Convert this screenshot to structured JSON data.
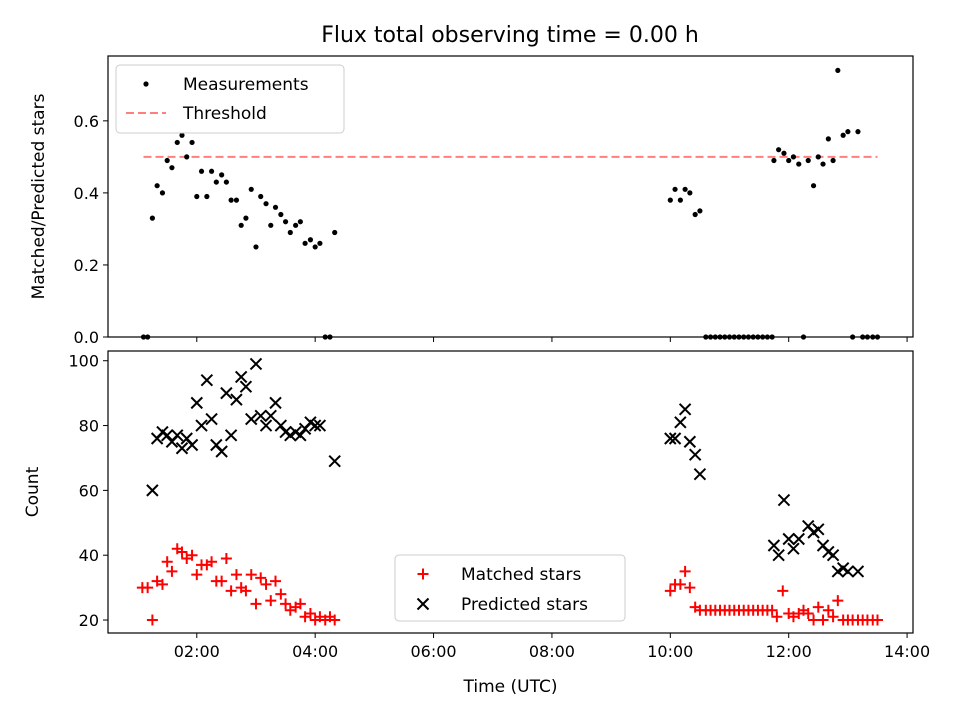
{
  "title": "Flux total observing time = 0.00 h",
  "chart_data": [
    {
      "type": "scatter",
      "ylabel": "Matched/Predicted stars",
      "xlim": [
        0.5,
        14.1
      ],
      "ylim": [
        0,
        0.78
      ],
      "yticks": [
        0.0,
        0.2,
        0.4,
        0.6
      ],
      "ytick_labels": [
        "0.0",
        "0.2",
        "0.4",
        "0.6"
      ],
      "legend_position": "upper left",
      "threshold": {
        "name": "Threshold",
        "y": 0.5,
        "x_range": [
          1.1,
          13.5
        ],
        "color": "#ff7f7f",
        "style": "dashed"
      },
      "series": [
        {
          "name": "Measurements",
          "marker": "dot",
          "color": "#000000",
          "points": [
            [
              1.1,
              0.0
            ],
            [
              1.17,
              0.0
            ],
            [
              1.25,
              0.33
            ],
            [
              1.33,
              0.42
            ],
            [
              1.42,
              0.4
            ],
            [
              1.5,
              0.49
            ],
            [
              1.58,
              0.47
            ],
            [
              1.67,
              0.54
            ],
            [
              1.75,
              0.56
            ],
            [
              1.83,
              0.5
            ],
            [
              1.92,
              0.54
            ],
            [
              2.0,
              0.39
            ],
            [
              2.08,
              0.46
            ],
            [
              2.17,
              0.39
            ],
            [
              2.25,
              0.46
            ],
            [
              2.33,
              0.43
            ],
            [
              2.42,
              0.45
            ],
            [
              2.5,
              0.43
            ],
            [
              2.58,
              0.38
            ],
            [
              2.67,
              0.38
            ],
            [
              2.75,
              0.31
            ],
            [
              2.83,
              0.33
            ],
            [
              2.92,
              0.41
            ],
            [
              3.0,
              0.25
            ],
            [
              3.08,
              0.39
            ],
            [
              3.17,
              0.37
            ],
            [
              3.25,
              0.31
            ],
            [
              3.33,
              0.36
            ],
            [
              3.42,
              0.34
            ],
            [
              3.5,
              0.32
            ],
            [
              3.58,
              0.29
            ],
            [
              3.67,
              0.31
            ],
            [
              3.75,
              0.32
            ],
            [
              3.83,
              0.26
            ],
            [
              3.92,
              0.27
            ],
            [
              4.0,
              0.25
            ],
            [
              4.08,
              0.26
            ],
            [
              4.17,
              0.0
            ],
            [
              4.25,
              0.0
            ],
            [
              4.33,
              0.29
            ],
            [
              10.0,
              0.38
            ],
            [
              10.08,
              0.41
            ],
            [
              10.17,
              0.38
            ],
            [
              10.25,
              0.41
            ],
            [
              10.33,
              0.4
            ],
            [
              10.42,
              0.34
            ],
            [
              10.5,
              0.35
            ],
            [
              10.6,
              0.0
            ],
            [
              10.68,
              0.0
            ],
            [
              10.76,
              0.0
            ],
            [
              10.84,
              0.0
            ],
            [
              10.92,
              0.0
            ],
            [
              11.0,
              0.0
            ],
            [
              11.08,
              0.0
            ],
            [
              11.16,
              0.0
            ],
            [
              11.24,
              0.0
            ],
            [
              11.32,
              0.0
            ],
            [
              11.4,
              0.0
            ],
            [
              11.48,
              0.0
            ],
            [
              11.56,
              0.0
            ],
            [
              11.64,
              0.0
            ],
            [
              11.72,
              0.0
            ],
            [
              11.75,
              0.49
            ],
            [
              11.83,
              0.52
            ],
            [
              11.92,
              0.51
            ],
            [
              12.0,
              0.49
            ],
            [
              12.08,
              0.5
            ],
            [
              12.17,
              0.48
            ],
            [
              12.25,
              0.0
            ],
            [
              12.33,
              0.49
            ],
            [
              12.42,
              0.42
            ],
            [
              12.5,
              0.5
            ],
            [
              12.58,
              0.48
            ],
            [
              12.67,
              0.55
            ],
            [
              12.75,
              0.49
            ],
            [
              12.83,
              0.74
            ],
            [
              12.92,
              0.56
            ],
            [
              13.0,
              0.57
            ],
            [
              13.08,
              0.0
            ],
            [
              13.17,
              0.57
            ],
            [
              13.25,
              0.0
            ],
            [
              13.33,
              0.0
            ],
            [
              13.42,
              0.0
            ],
            [
              13.5,
              0.0
            ]
          ]
        }
      ]
    },
    {
      "type": "scatter",
      "xlabel": "Time (UTC)",
      "ylabel": "Count",
      "xlim": [
        0.5,
        14.1
      ],
      "ylim": [
        16,
        103
      ],
      "xticks": [
        2,
        4,
        6,
        8,
        10,
        12,
        14
      ],
      "xtick_labels": [
        "02:00",
        "04:00",
        "06:00",
        "08:00",
        "10:00",
        "12:00",
        "14:00"
      ],
      "yticks": [
        20,
        40,
        60,
        80,
        100
      ],
      "ytick_labels": [
        "20",
        "40",
        "60",
        "80",
        "100"
      ],
      "legend_position": "lower center",
      "series": [
        {
          "name": "Matched stars",
          "marker": "plus",
          "color": "#ff0000",
          "points": [
            [
              1.08,
              30
            ],
            [
              1.17,
              30
            ],
            [
              1.25,
              20
            ],
            [
              1.33,
              32
            ],
            [
              1.42,
              31
            ],
            [
              1.5,
              38
            ],
            [
              1.58,
              35
            ],
            [
              1.67,
              42
            ],
            [
              1.75,
              41
            ],
            [
              1.83,
              39
            ],
            [
              1.92,
              40
            ],
            [
              2.0,
              34
            ],
            [
              2.08,
              37
            ],
            [
              2.17,
              37
            ],
            [
              2.25,
              38
            ],
            [
              2.33,
              32
            ],
            [
              2.42,
              32
            ],
            [
              2.5,
              39
            ],
            [
              2.58,
              29
            ],
            [
              2.67,
              34
            ],
            [
              2.75,
              30
            ],
            [
              2.83,
              29
            ],
            [
              2.92,
              34
            ],
            [
              3.0,
              25
            ],
            [
              3.08,
              33
            ],
            [
              3.17,
              31
            ],
            [
              3.25,
              26
            ],
            [
              3.33,
              32
            ],
            [
              3.42,
              28
            ],
            [
              3.5,
              25
            ],
            [
              3.58,
              23
            ],
            [
              3.67,
              24
            ],
            [
              3.75,
              25
            ],
            [
              3.83,
              21
            ],
            [
              3.92,
              22
            ],
            [
              4.0,
              20
            ],
            [
              4.08,
              21
            ],
            [
              4.17,
              20
            ],
            [
              4.25,
              21
            ],
            [
              4.33,
              20
            ],
            [
              10.0,
              29
            ],
            [
              10.08,
              31
            ],
            [
              10.17,
              31
            ],
            [
              10.25,
              35
            ],
            [
              10.33,
              30
            ],
            [
              10.42,
              24
            ],
            [
              10.5,
              23
            ],
            [
              10.6,
              23
            ],
            [
              10.68,
              23
            ],
            [
              10.76,
              23
            ],
            [
              10.84,
              23
            ],
            [
              10.92,
              23
            ],
            [
              11.0,
              23
            ],
            [
              11.08,
              23
            ],
            [
              11.16,
              23
            ],
            [
              11.24,
              23
            ],
            [
              11.32,
              23
            ],
            [
              11.4,
              23
            ],
            [
              11.48,
              23
            ],
            [
              11.56,
              23
            ],
            [
              11.64,
              23
            ],
            [
              11.72,
              23
            ],
            [
              11.8,
              21
            ],
            [
              11.9,
              29
            ],
            [
              12.0,
              22
            ],
            [
              12.08,
              21
            ],
            [
              12.17,
              22
            ],
            [
              12.25,
              23
            ],
            [
              12.33,
              22
            ],
            [
              12.42,
              20
            ],
            [
              12.5,
              24
            ],
            [
              12.58,
              20
            ],
            [
              12.67,
              23
            ],
            [
              12.75,
              21
            ],
            [
              12.83,
              26
            ],
            [
              12.92,
              20
            ],
            [
              13.0,
              20
            ],
            [
              13.08,
              20
            ],
            [
              13.17,
              20
            ],
            [
              13.25,
              20
            ],
            [
              13.33,
              20
            ],
            [
              13.42,
              20
            ],
            [
              13.5,
              20
            ]
          ]
        },
        {
          "name": "Predicted stars",
          "marker": "x",
          "color": "#000000",
          "points": [
            [
              1.25,
              60
            ],
            [
              1.33,
              76
            ],
            [
              1.42,
              78
            ],
            [
              1.5,
              77
            ],
            [
              1.58,
              75
            ],
            [
              1.67,
              77
            ],
            [
              1.75,
              73
            ],
            [
              1.83,
              76
            ],
            [
              1.92,
              74
            ],
            [
              2.0,
              87
            ],
            [
              2.08,
              80
            ],
            [
              2.17,
              94
            ],
            [
              2.25,
              82
            ],
            [
              2.33,
              74
            ],
            [
              2.42,
              72
            ],
            [
              2.5,
              90
            ],
            [
              2.58,
              77
            ],
            [
              2.67,
              88
            ],
            [
              2.75,
              95
            ],
            [
              2.83,
              92
            ],
            [
              2.92,
              82
            ],
            [
              3.0,
              99
            ],
            [
              3.08,
              83
            ],
            [
              3.17,
              80
            ],
            [
              3.25,
              83
            ],
            [
              3.33,
              87
            ],
            [
              3.42,
              80
            ],
            [
              3.5,
              78
            ],
            [
              3.58,
              77
            ],
            [
              3.67,
              78
            ],
            [
              3.75,
              77
            ],
            [
              3.83,
              79
            ],
            [
              3.92,
              81
            ],
            [
              4.0,
              80
            ],
            [
              4.08,
              80
            ],
            [
              4.33,
              69
            ],
            [
              10.0,
              76
            ],
            [
              10.08,
              76
            ],
            [
              10.17,
              81
            ],
            [
              10.25,
              85
            ],
            [
              10.33,
              75
            ],
            [
              10.42,
              71
            ],
            [
              10.5,
              65
            ],
            [
              11.75,
              43
            ],
            [
              11.83,
              40
            ],
            [
              11.92,
              57
            ],
            [
              12.0,
              45
            ],
            [
              12.08,
              42
            ],
            [
              12.17,
              45
            ],
            [
              12.33,
              49
            ],
            [
              12.42,
              47
            ],
            [
              12.5,
              48
            ],
            [
              12.58,
              43
            ],
            [
              12.67,
              41
            ],
            [
              12.75,
              40
            ],
            [
              12.83,
              35
            ],
            [
              12.92,
              36
            ],
            [
              13.0,
              35
            ],
            [
              13.17,
              35
            ]
          ]
        }
      ]
    }
  ]
}
